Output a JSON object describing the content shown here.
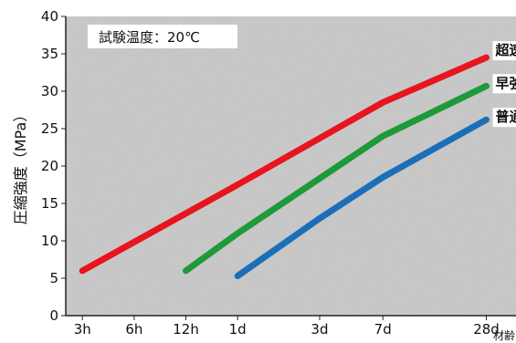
{
  "chart_data": {
    "type": "line",
    "title": "",
    "annotation": "試験温度：20℃",
    "ylabel": "圧縮強度（MPa）",
    "xlabel": "材齢",
    "ylim": [
      0,
      40
    ],
    "yticks": [
      0,
      5,
      10,
      15,
      20,
      25,
      30,
      35,
      40
    ],
    "x_scale": "log",
    "x_unit": "hours",
    "xlim": [
      2.4,
      1000
    ],
    "xticks": [
      {
        "label": "3h",
        "value": 3
      },
      {
        "label": "6h",
        "value": 6
      },
      {
        "label": "12h",
        "value": 12
      },
      {
        "label": "1d",
        "value": 24
      },
      {
        "label": "3d",
        "value": 72
      },
      {
        "label": "7d",
        "value": 168
      },
      {
        "label": "28d",
        "value": 672
      }
    ],
    "grid": false,
    "series": [
      {
        "name": "超速硬型",
        "color": "#e8141e",
        "x": [
          3,
          24,
          168,
          672
        ],
        "y": [
          6,
          17.5,
          28.5,
          34.5
        ]
      },
      {
        "name": "早強型",
        "color": "#1e9a3a",
        "x": [
          12,
          24,
          168,
          672
        ],
        "y": [
          6,
          11,
          24,
          30.7
        ]
      },
      {
        "name": "普通型",
        "color": "#1a6fb8",
        "x": [
          24,
          72,
          168,
          672
        ],
        "y": [
          5.3,
          13,
          18.5,
          26.2
        ]
      }
    ]
  }
}
